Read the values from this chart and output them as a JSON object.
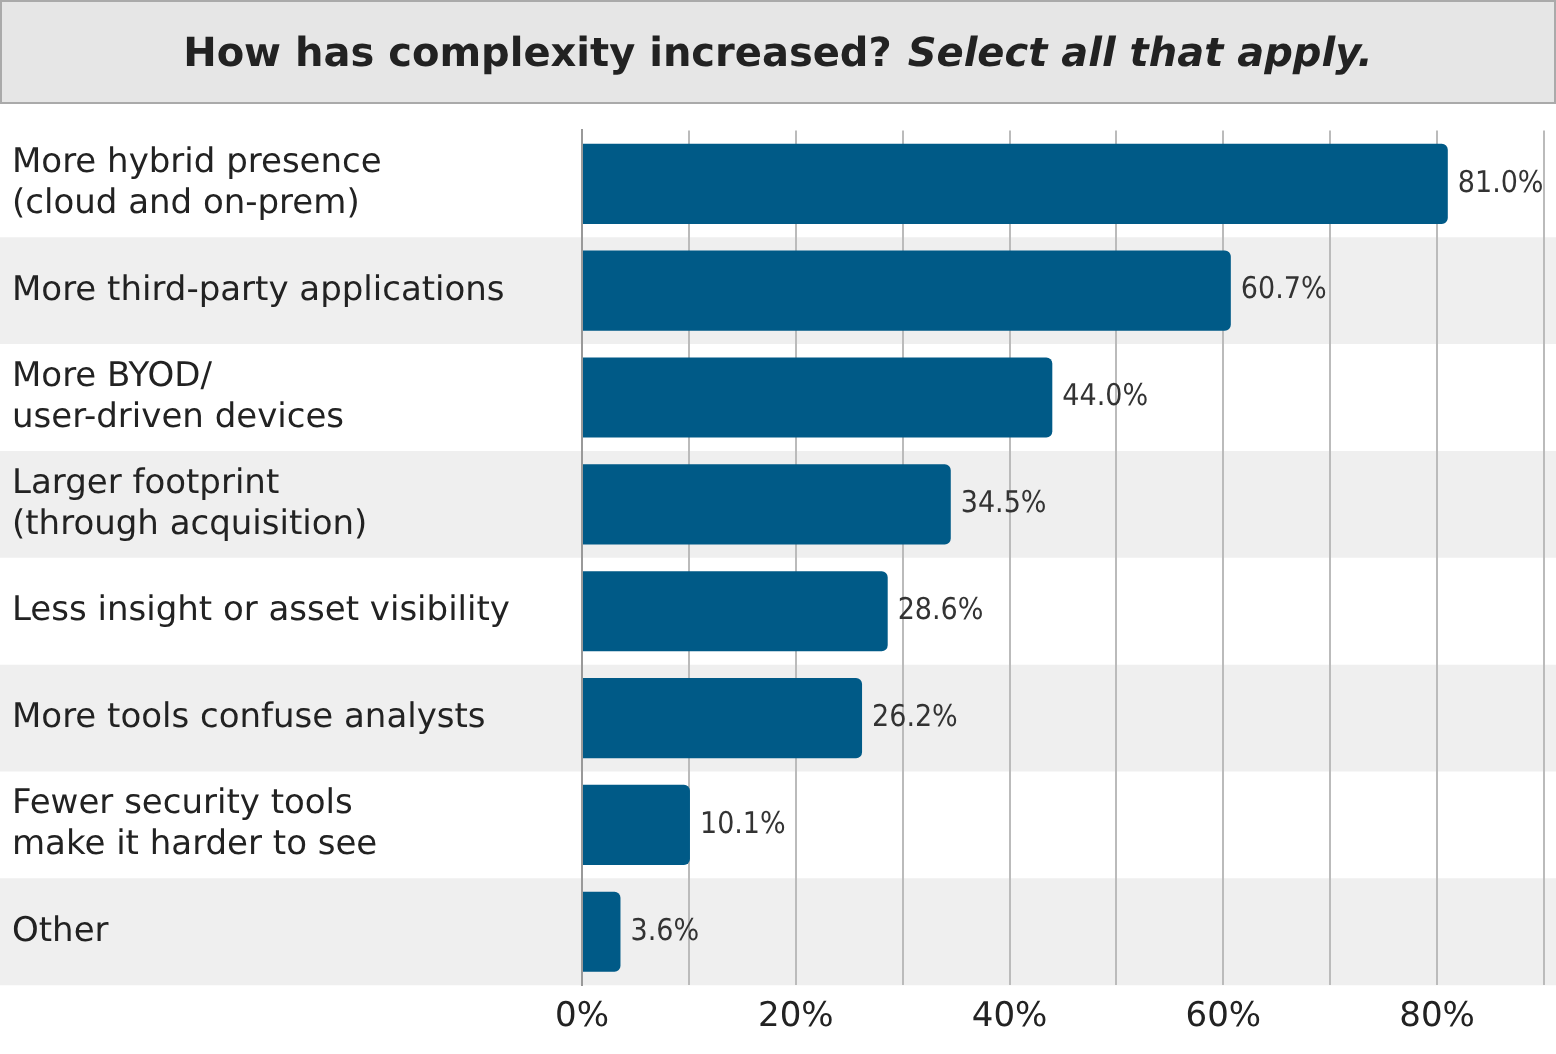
{
  "chart_data": {
    "type": "bar",
    "orientation": "horizontal",
    "title": "How has complexity increased?",
    "subtitle": "Select all that apply.",
    "categories": [
      "More hybrid presence\n(cloud and on-prem)",
      "More third-party applications",
      "More BYOD/\nuser-driven devices",
      "Larger footprint\n(through acquisition)",
      "Less insight or asset visibility",
      "More tools confuse analysts",
      "Fewer security tools\nmake it harder to see",
      "Other"
    ],
    "values": [
      81.0,
      60.7,
      44.0,
      34.5,
      28.6,
      26.2,
      10.1,
      3.6
    ],
    "value_labels": [
      "81.0%",
      "60.7%",
      "44.0%",
      "34.5%",
      "28.6%",
      "26.2%",
      "10.1%",
      "3.6%"
    ],
    "color": "#005a87",
    "xlim": [
      0,
      90
    ],
    "xticks": [
      {
        "value": 0,
        "label": "0%"
      },
      {
        "value": 10,
        "label": null
      },
      {
        "value": 20,
        "label": "20%"
      },
      {
        "value": 30,
        "label": null
      },
      {
        "value": 40,
        "label": "40%"
      },
      {
        "value": 50,
        "label": null
      },
      {
        "value": 60,
        "label": "60%"
      },
      {
        "value": 70,
        "label": null
      },
      {
        "value": 80,
        "label": "80%"
      },
      {
        "value": 90,
        "label": null
      }
    ],
    "grid": "x",
    "legend": false
  }
}
